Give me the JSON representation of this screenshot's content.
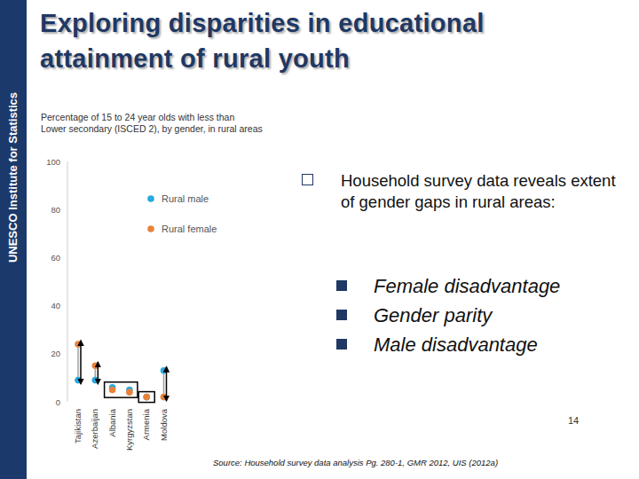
{
  "slide": {
    "sidebar": "UNESCO Institute for Statistics",
    "title": [
      "Exploring disparities in educational",
      "attainment of rural youth"
    ],
    "bullet": "Household survey data reveals extent of gender gaps in rural areas:",
    "sub_bullets": [
      "Female disadvantage",
      "Gender parity",
      "Male disadvantage"
    ],
    "page_number": "14",
    "source": "Source:  Household survey data analysis Pg. 280-1, GMR 2012, UIS (2012a)"
  },
  "chart_data": {
    "type": "dot",
    "title": [
      "Percentage of 15 to 24 year olds with less than",
      "Lower secondary (ISCED 2), by gender, in rural areas"
    ],
    "categories": [
      "Tajikistan",
      "Azerbaijan",
      "Albania",
      "Kyrgyzstan",
      "Armenia",
      "Moldova"
    ],
    "series": [
      {
        "name": "Rural male",
        "color": "#27a9e1",
        "values": [
          9,
          9,
          6,
          5,
          2,
          13
        ]
      },
      {
        "name": "Rural female",
        "color": "#e8823a",
        "values": [
          24,
          15,
          5,
          4,
          2,
          2
        ]
      }
    ],
    "marker": "circle",
    "ylim": [
      0,
      100
    ],
    "yticks": [
      0,
      20,
      40,
      60,
      80,
      100
    ],
    "grid": false,
    "legend": "top right"
  }
}
